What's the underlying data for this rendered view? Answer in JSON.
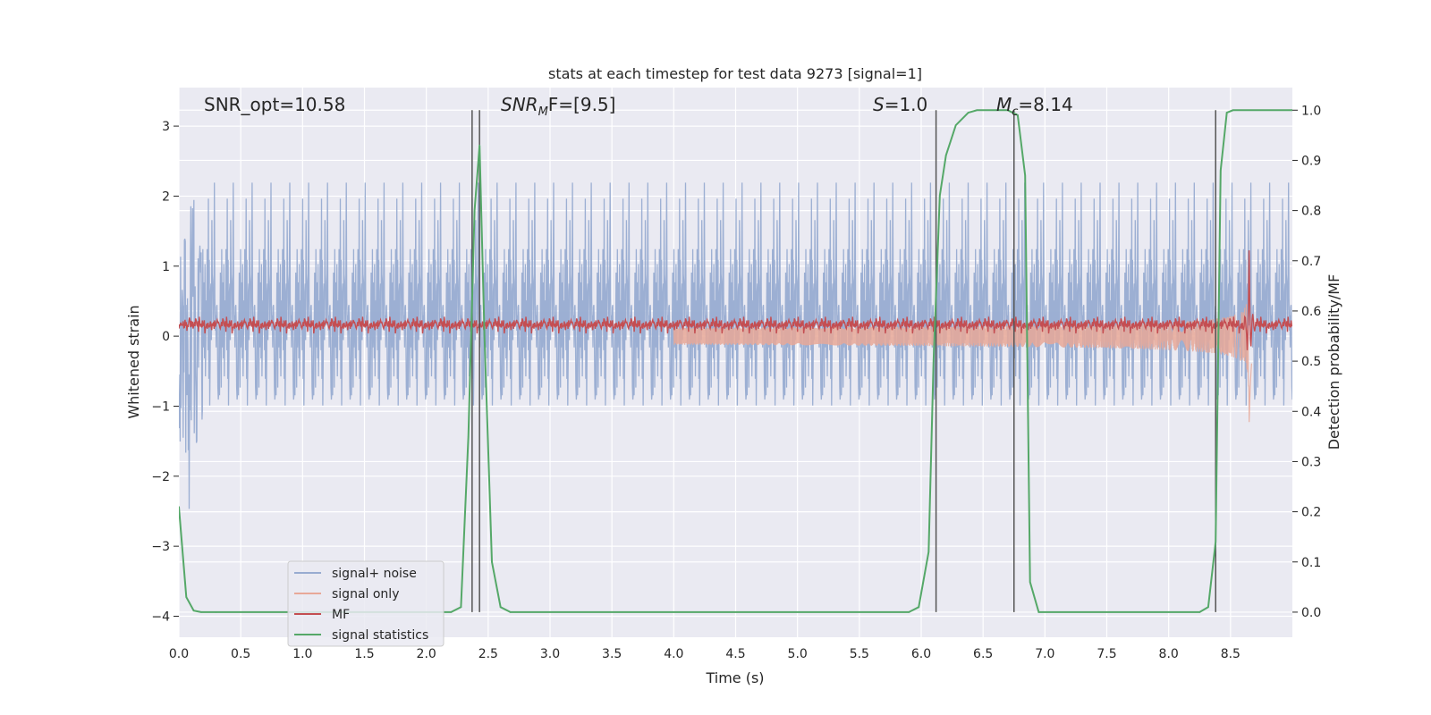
{
  "chart_data": {
    "type": "line",
    "title": "stats at each timestep for test data 9273 [signal=1]",
    "xlabel": "Time (s)",
    "ylabel_left": "Whitened strain",
    "ylabel_right": "Detection probability/MF",
    "xlim": [
      0.0,
      9.0
    ],
    "ylim_left": [
      -4.3,
      3.55
    ],
    "ylim_right": [
      -0.05,
      1.045
    ],
    "x_ticks": [
      "0.0",
      "0.5",
      "1.0",
      "1.5",
      "2.0",
      "2.5",
      "3.0",
      "3.5",
      "4.0",
      "4.5",
      "5.0",
      "5.5",
      "6.0",
      "6.5",
      "7.0",
      "7.5",
      "8.0",
      "8.5"
    ],
    "y_ticks_left": [
      "3",
      "2",
      "1",
      "0",
      "−1",
      "−2",
      "−3",
      "−4"
    ],
    "y_ticks_right": [
      "1.0",
      "0.9",
      "0.8",
      "0.7",
      "0.6",
      "0.5",
      "0.4",
      "0.3",
      "0.2",
      "0.1",
      "0.0"
    ],
    "grid": true,
    "legend_position": "lower-left",
    "colors": {
      "background": "#eaeaf2",
      "grid": "#ffffff",
      "noise": "#98acd1",
      "signal": "#e8a898",
      "mf": "#c44e52",
      "stat": "#55a868",
      "vline": "#555555"
    },
    "annotations": [
      {
        "name": "snr-opt",
        "text": "SNR_opt=10.58"
      },
      {
        "name": "snr-mf",
        "base": "SNR",
        "sub": "M",
        "tail": "F=[9.5]"
      },
      {
        "name": "s-value",
        "base": "S",
        "tail": "=1.0"
      },
      {
        "name": "mc-value",
        "base": "M",
        "sub": "c",
        "tail": "=8.14"
      }
    ],
    "vertical_lines_x": [
      2.37,
      2.43,
      6.12,
      6.75,
      8.38
    ],
    "series": [
      {
        "name": "signal+ noise",
        "kind": "noise",
        "amplitude_sigma": 1.0
      },
      {
        "name": "signal only",
        "kind": "chirp",
        "merger_time": 8.65,
        "peak": 1.3
      },
      {
        "name": "MF",
        "kind": "mf",
        "mean": 0.15,
        "spike_time": 8.65,
        "spike_peak": 1.0
      },
      {
        "name": "signal statistics",
        "kind": "stat",
        "x": [
          0.0,
          0.06,
          0.12,
          0.18,
          0.3,
          2.2,
          2.28,
          2.34,
          2.39,
          2.43,
          2.47,
          2.53,
          2.6,
          2.68,
          5.9,
          5.98,
          6.06,
          6.1,
          6.15,
          6.2,
          6.28,
          6.38,
          6.45,
          6.7,
          6.78,
          6.84,
          6.88,
          6.95,
          8.25,
          8.32,
          8.38,
          8.42,
          8.47,
          8.52,
          9.0
        ],
        "y": [
          0.21,
          0.03,
          0.003,
          0.0,
          0.0,
          0.0,
          0.01,
          0.35,
          0.8,
          0.93,
          0.55,
          0.1,
          0.01,
          0.0,
          0.0,
          0.01,
          0.12,
          0.5,
          0.83,
          0.91,
          0.97,
          0.995,
          1.0,
          1.0,
          0.99,
          0.87,
          0.06,
          0.0,
          0.0,
          0.01,
          0.14,
          0.88,
          0.995,
          1.0,
          1.0
        ]
      }
    ]
  }
}
